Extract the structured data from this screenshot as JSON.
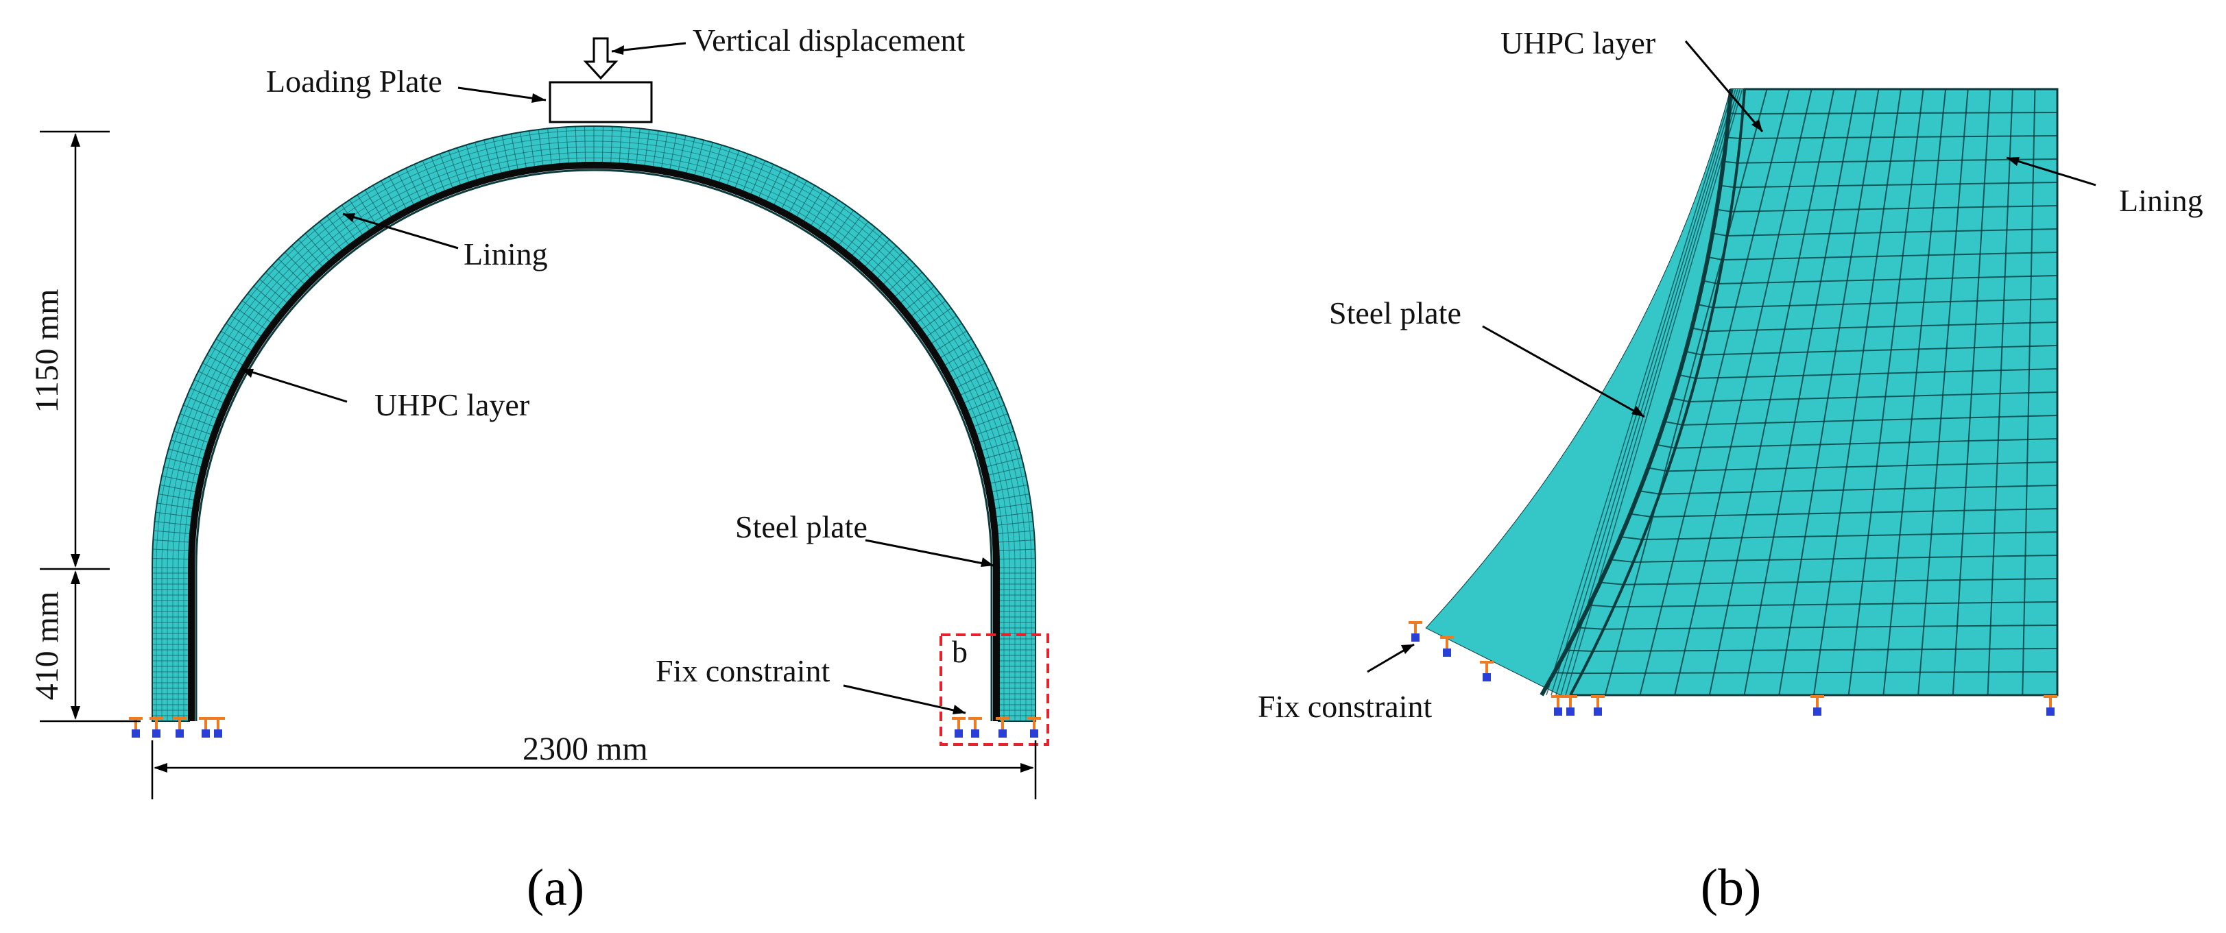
{
  "panel_a": {
    "caption": "(a)",
    "labels": {
      "vertical_displacement": "Vertical displacement",
      "loading_plate": "Loading Plate",
      "lining": "Lining",
      "uhpc_layer": "UHPC layer",
      "steel_plate": "Steel plate",
      "fix_constraint": "Fix constraint",
      "detail_marker": "b"
    },
    "dimensions": {
      "arch_height": "1150 mm",
      "wall_height": "410 mm",
      "span": "2300 mm"
    }
  },
  "panel_b": {
    "caption": "(b)",
    "labels": {
      "uhpc_layer": "UHPC layer",
      "lining": "Lining",
      "steel_plate": "Steel plate",
      "fix_constraint": "Fix constraint"
    }
  },
  "colors": {
    "mesh_fill": "#35c6c8",
    "mesh_line": "#0b3b3d",
    "steel_plate": "#0a0a0a",
    "detail_box": "#e8212a",
    "constraint_orange": "#f07a1e",
    "constraint_blue": "#2a3fd6"
  }
}
